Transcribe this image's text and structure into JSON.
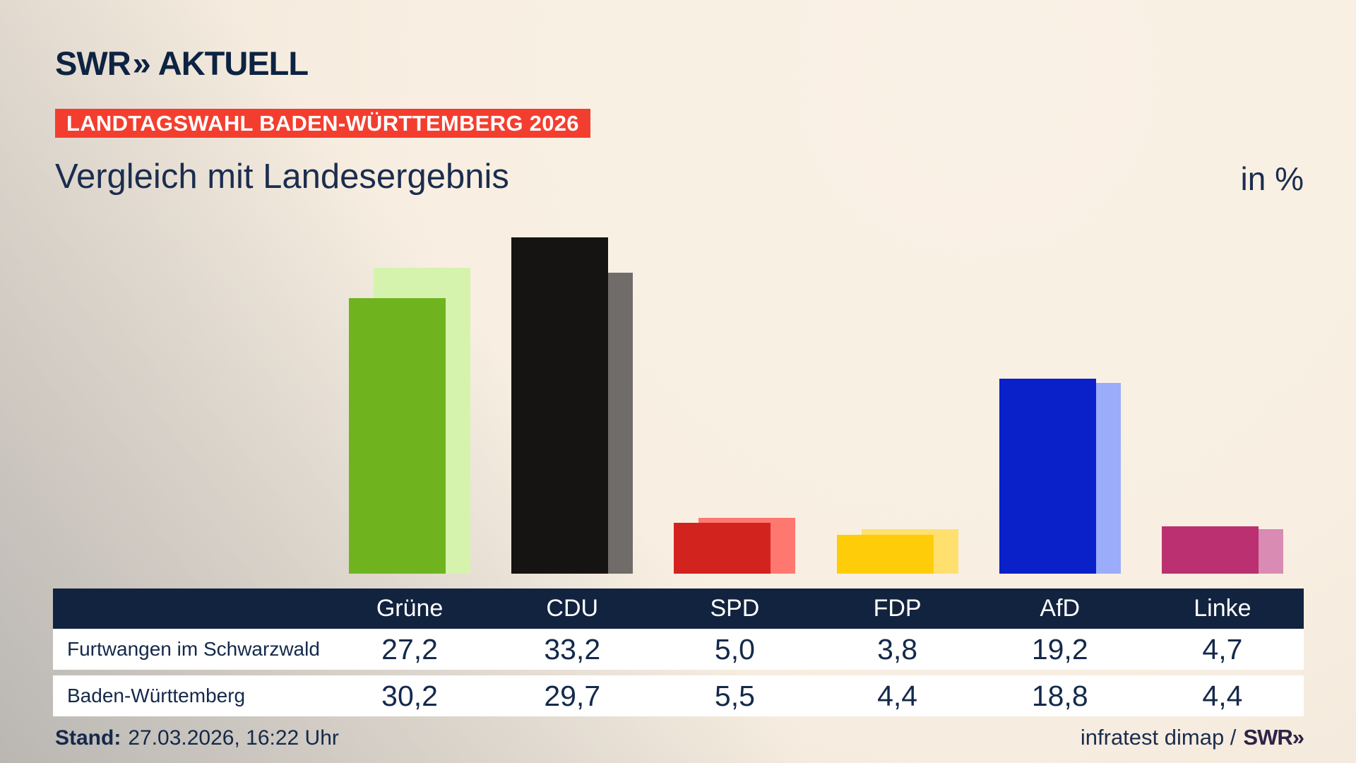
{
  "header": {
    "logo_swr": "SWR",
    "logo_chevron": "»",
    "logo_aktuell": "AKTUELL",
    "badge": "LANDTAGSWAHL BADEN-WÜRTTEMBERG 2026",
    "title": "Vergleich mit Landesergebnis",
    "unit": "in %"
  },
  "chart_data": {
    "type": "bar",
    "title": "Vergleich mit Landesergebnis",
    "unit": "in %",
    "categories": [
      "Grüne",
      "CDU",
      "SPD",
      "FDP",
      "AfD",
      "Linke"
    ],
    "series": [
      {
        "name": "Furtwangen im Schwarzwald",
        "values": [
          27.2,
          33.2,
          5.0,
          3.8,
          19.2,
          4.7
        ]
      },
      {
        "name": "Baden-Württemberg",
        "values": [
          30.2,
          29.7,
          5.5,
          4.4,
          18.8,
          4.4
        ]
      }
    ],
    "bar_colors": {
      "local": [
        "#6fb41f",
        "#161412",
        "#d3231e",
        "#ffcc0a",
        "#0a20c8",
        "#bb3070"
      ],
      "state": [
        "#d6f3ad",
        "#6f6c69",
        "#ff7870",
        "#ffe06e",
        "#9aacfa",
        "#d98bb4"
      ]
    },
    "ylim": [
      0,
      36
    ],
    "grid": false,
    "legend": "table-rows"
  },
  "table": {
    "row_labels": [
      "Furtwangen im Schwarzwald",
      "Baden-Württemberg"
    ],
    "values_display": [
      [
        "27,2",
        "33,2",
        "5,0",
        "3,8",
        "19,2",
        "4,7"
      ],
      [
        "30,2",
        "29,7",
        "5,5",
        "4,4",
        "18,8",
        "4,4"
      ]
    ]
  },
  "footer": {
    "stand_label": "Stand:",
    "stand_value": "27.03.2026, 16:22 Uhr",
    "source": "infratest dimap /",
    "source_logo": "SWR»"
  },
  "colors": {
    "badge_red": "#f33e2f",
    "navy_text": "#1b2d4f",
    "table_header_navy": "#12233f",
    "swr_purple": "#2e2347",
    "background_beige": "#f8efe2",
    "background_gray": "#bab7b3"
  }
}
